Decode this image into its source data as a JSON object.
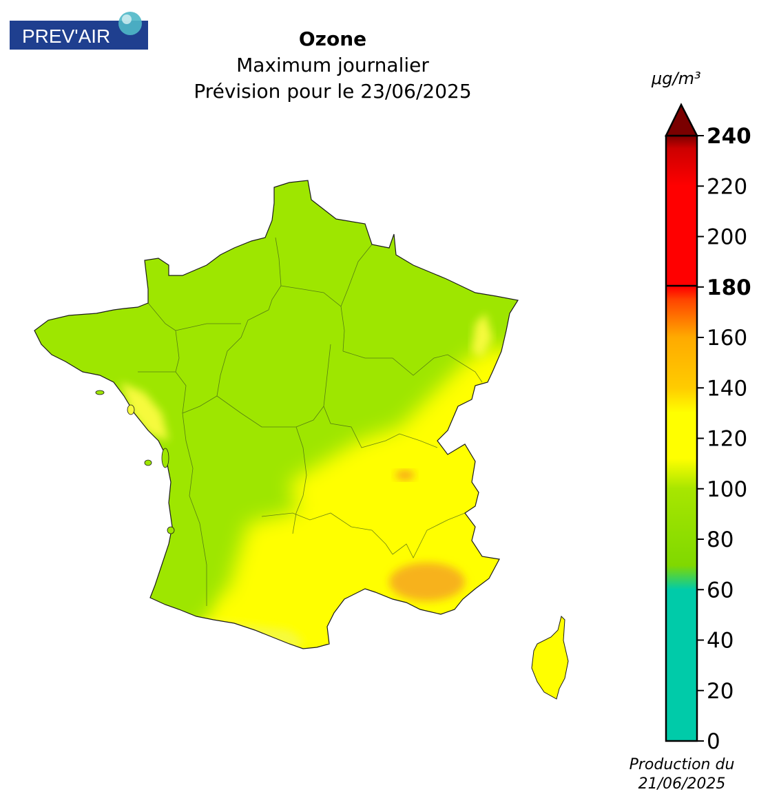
{
  "logo": {
    "text": "PREV'AIR",
    "colors": {
      "background": "#1f3f8f",
      "text": "#ffffff",
      "globe": "#4fb8c8"
    }
  },
  "title": {
    "main": "Ozone",
    "line2": "Maximum journalier",
    "line3": "Prévision pour le 23/06/2025"
  },
  "legend": {
    "unit": "μg/m³",
    "ticks": [
      "0",
      "20",
      "40",
      "60",
      "80",
      "100",
      "120",
      "140",
      "160",
      "180",
      "200",
      "220",
      "240"
    ],
    "bold_ticks": [
      "180",
      "240"
    ],
    "range": [
      0,
      240
    ],
    "threshold": 180,
    "extend": "max",
    "colors": [
      {
        "value": 0,
        "color": "#00cba9"
      },
      {
        "value": 60,
        "color": "#00cba9"
      },
      {
        "value": 70,
        "color": "#80d800"
      },
      {
        "value": 80,
        "color": "#8ddd00"
      },
      {
        "value": 100,
        "color": "#a8e600"
      },
      {
        "value": 112,
        "color": "#ffff00"
      },
      {
        "value": 130,
        "color": "#ffff00"
      },
      {
        "value": 140,
        "color": "#ffcc00"
      },
      {
        "value": 160,
        "color": "#ffaa00"
      },
      {
        "value": 175,
        "color": "#ff4400"
      },
      {
        "value": 180,
        "color": "#ff0000"
      },
      {
        "value": 220,
        "color": "#ff0000"
      },
      {
        "value": 235,
        "color": "#cc0000"
      },
      {
        "value": 240,
        "color": "#7a0000"
      }
    ],
    "overflow_color": "#7a0000"
  },
  "footer": {
    "line1": "Production du",
    "line2": "21/06/2025"
  },
  "map": {
    "region": "France",
    "palette": {
      "green": "#9ee600",
      "green_dark": "#8fdd00",
      "yellow": "#ffff00",
      "yellow_light": "#f6fa3c",
      "orange": "#f7b21a",
      "outline": "#1a1a1a",
      "border": "#3c5a1a"
    }
  }
}
